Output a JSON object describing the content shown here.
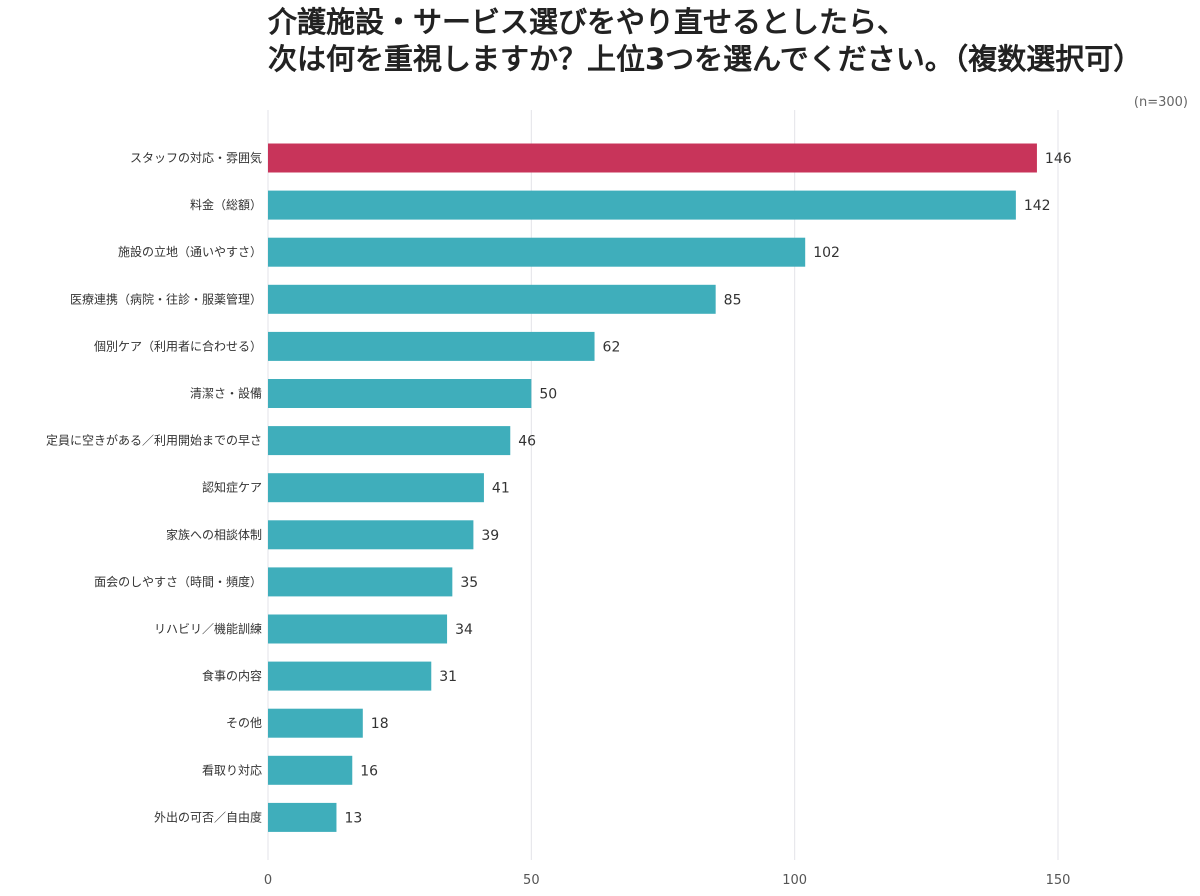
{
  "header": {
    "title_line1": "介護施設・サービス選びをやり直せるとしたら、",
    "title_line2": "次は何を重視しますか？上位3つを選んでください。（複数選択可）",
    "sample_size": "(n=300)"
  },
  "chart_data": {
    "type": "bar",
    "orientation": "horizontal",
    "title": "介護施設・サービス選びをやり直せるとしたら、次は何を重視しますか？上位3つを選んでください。（複数選択可）",
    "xlabel": "",
    "ylabel": "",
    "xlim": [
      0,
      150
    ],
    "xticks": [
      0,
      50,
      100,
      150
    ],
    "grid": true,
    "categories": [
      "スタッフの対応・雰囲気",
      "料金（総額）",
      "施設の立地（通いやすさ）",
      "医療連携（病院・往診・服薬管理）",
      "個別ケア（利用者に合わせる）",
      "清潔さ・設備",
      "定員に空きがある／利用開始までの早さ",
      "認知症ケア",
      "家族への相談体制",
      "面会のしやすさ（時間・頻度）",
      "リハビリ／機能訓練",
      "食事の内容",
      "その他",
      "看取り対応",
      "外出の可否／自由度"
    ],
    "values": [
      146,
      142,
      102,
      85,
      62,
      50,
      46,
      41,
      39,
      35,
      34,
      31,
      18,
      16,
      13
    ],
    "colors": {
      "highlight": "#C8345A",
      "default": "#3FAEBB",
      "grid": "#E3E3E8"
    },
    "highlight_index": 0
  }
}
